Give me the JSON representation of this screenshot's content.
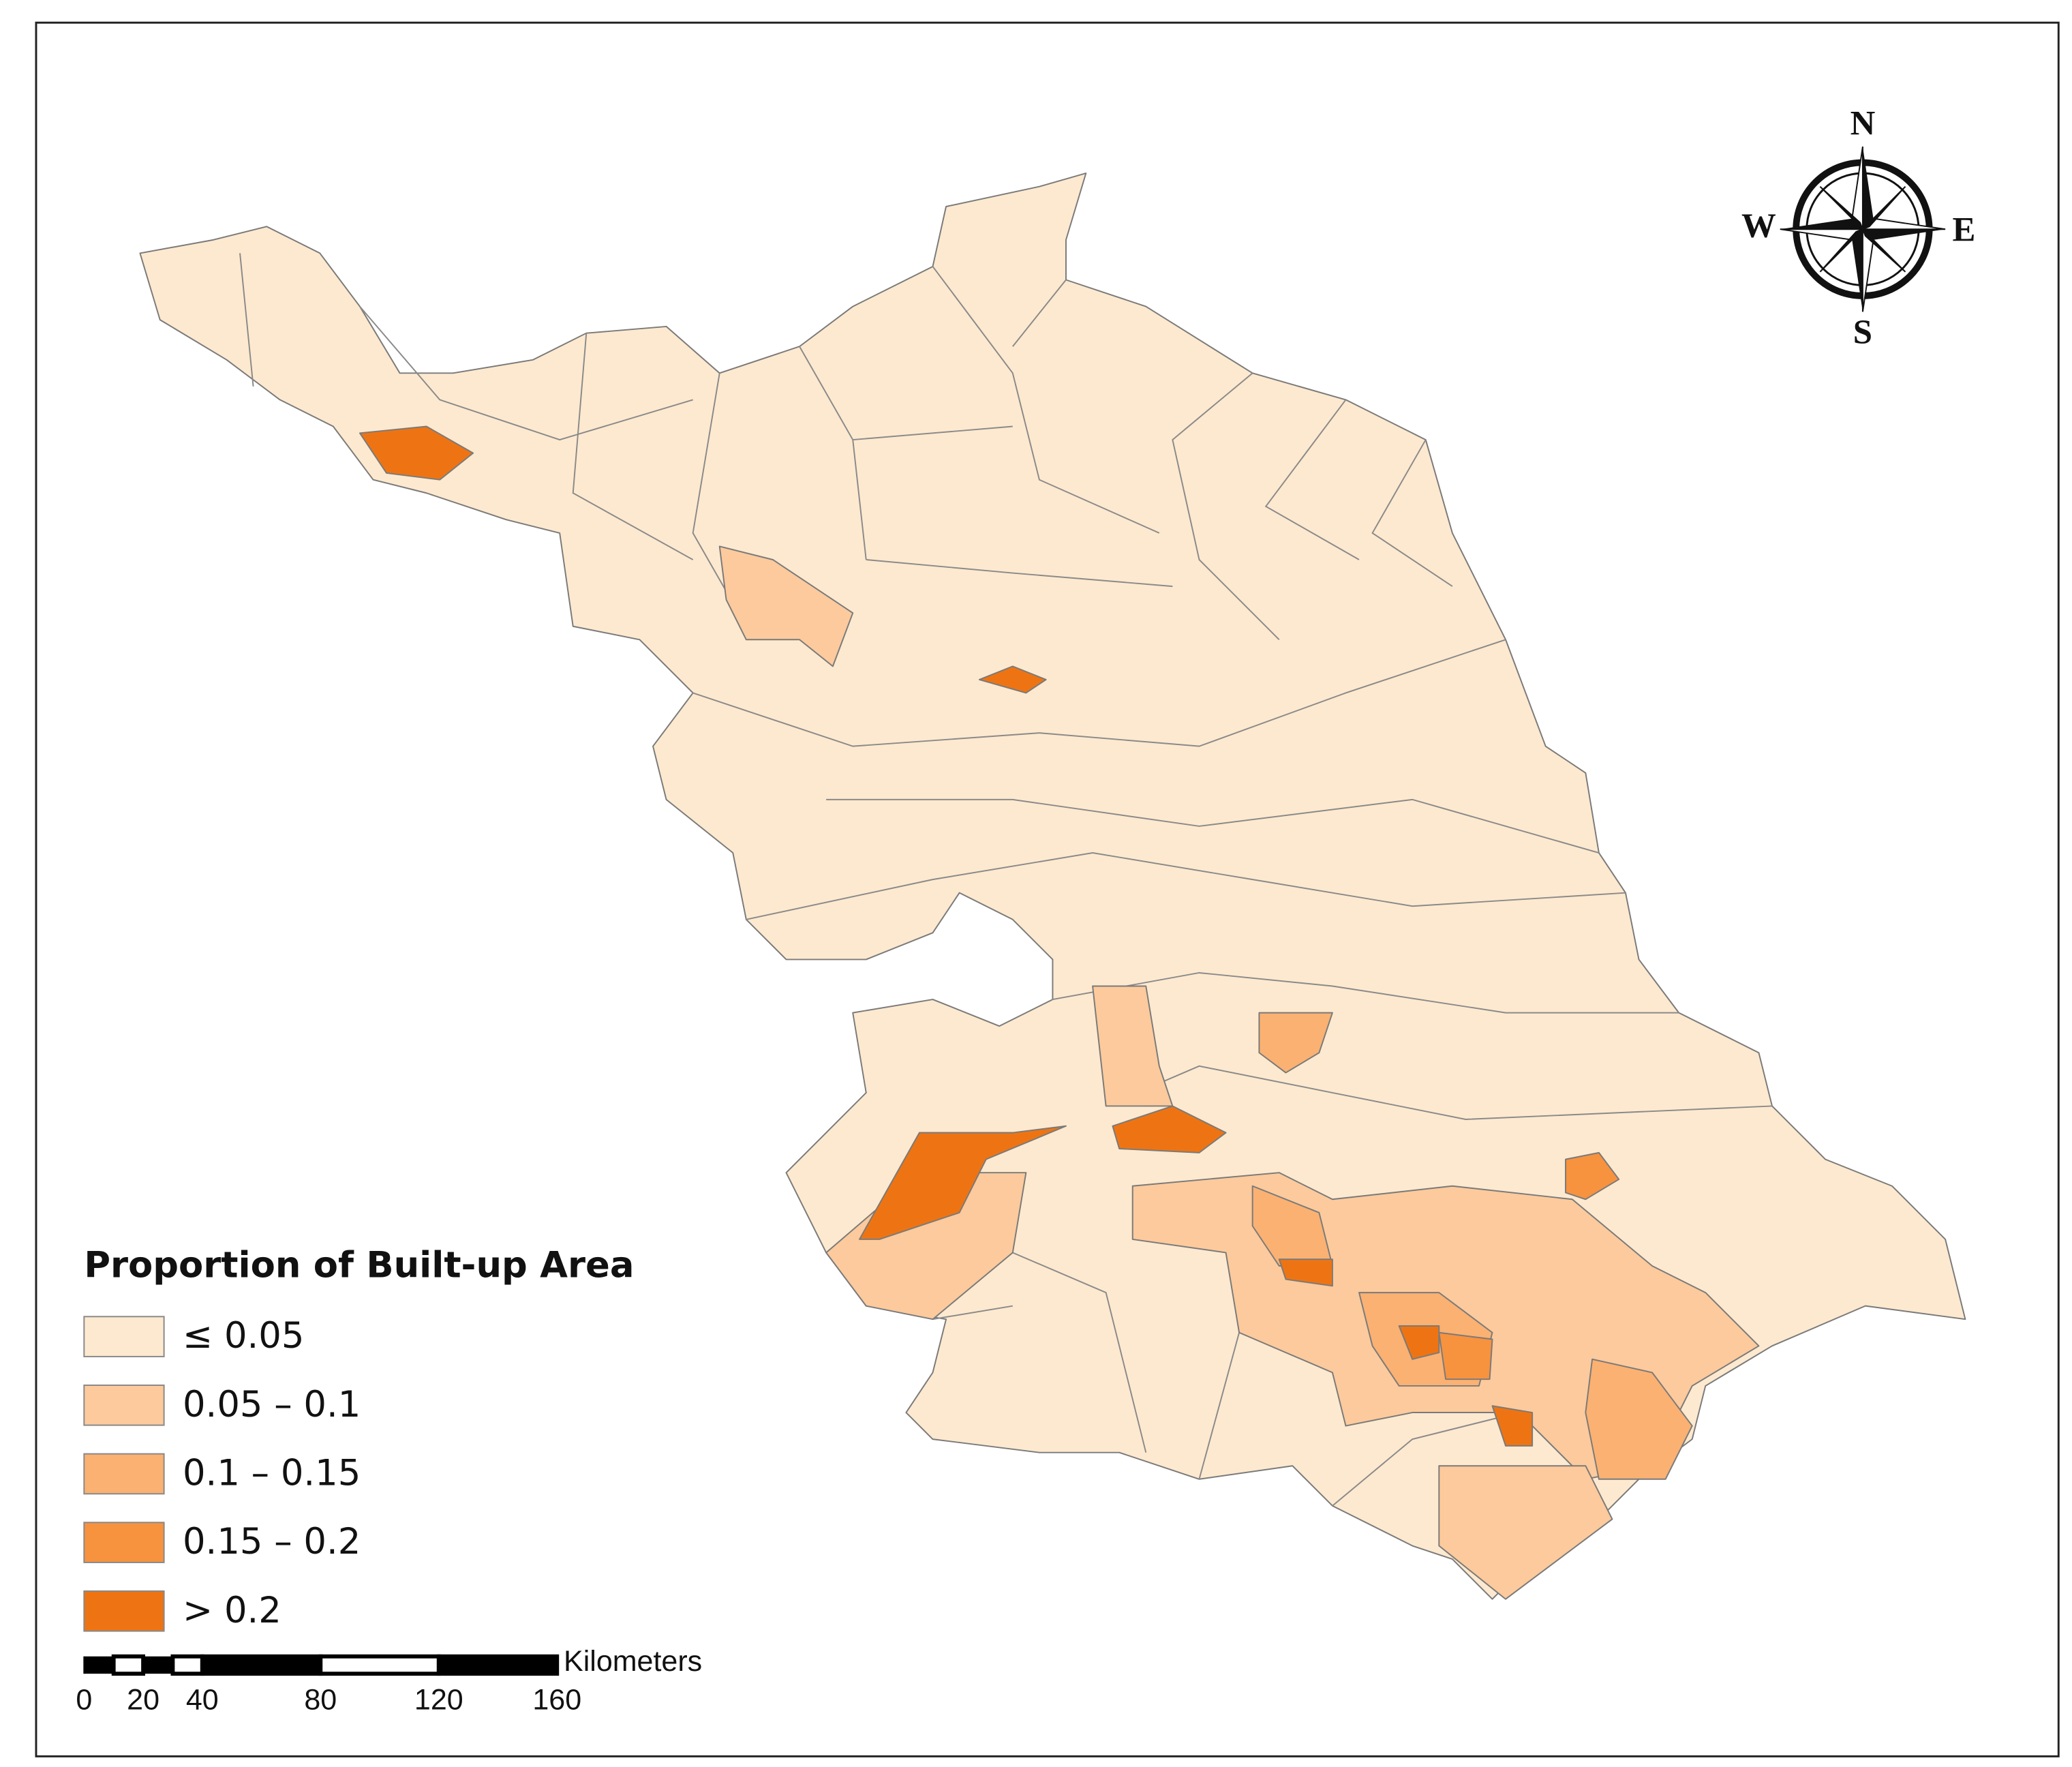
{
  "legend": {
    "title": "Proportion of Built-up Area",
    "items": [
      {
        "label": "≤ 0.05",
        "color": "#fde9cf"
      },
      {
        "label": "0.05 – 0.1",
        "color": "#fcca9c"
      },
      {
        "label": "0.1 – 0.15",
        "color": "#fab172"
      },
      {
        "label": "0.15 – 0.2",
        "color": "#f7923f"
      },
      {
        "label": "> 0.2",
        "color": "#ee7413"
      }
    ]
  },
  "scale_bar": {
    "unit": "Kilometers",
    "ticks": [
      0,
      20,
      40,
      80,
      120,
      160
    ]
  },
  "compass": {
    "north": "N",
    "east": "E",
    "south": "S",
    "west": "W"
  }
}
